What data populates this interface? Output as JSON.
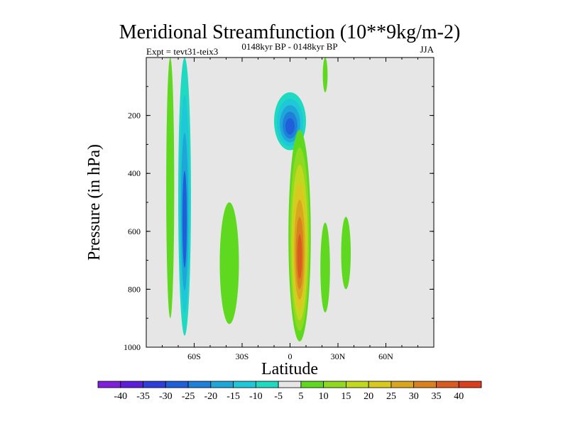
{
  "chart_data": {
    "type": "heatmap",
    "title": "Meridional Streamfunction (10**9kg/m-2)",
    "left_label": "Expt = tevt31-teix3",
    "center_label": "0148kyr BP - 0148kyr BP",
    "right_label": "JJA",
    "xlabel": "Latitude",
    "ylabel": "Pressure (in hPa)",
    "x_range": [
      -90,
      90
    ],
    "y_range": [
      1000,
      0
    ],
    "x_ticks": [
      {
        "value": -60,
        "label": "60S"
      },
      {
        "value": -30,
        "label": "30S"
      },
      {
        "value": 0,
        "label": "0"
      },
      {
        "value": 30,
        "label": "30N"
      },
      {
        "value": 60,
        "label": "60N"
      }
    ],
    "y_ticks": [
      {
        "value": 200,
        "label": "200"
      },
      {
        "value": 400,
        "label": "400"
      },
      {
        "value": 600,
        "label": "600"
      },
      {
        "value": 800,
        "label": "800"
      },
      {
        "value": 1000,
        "label": "1000"
      }
    ],
    "background_color": "#e6e6e6",
    "colorbar": {
      "levels": [
        "-40",
        "-35",
        "-30",
        "-25",
        "-20",
        "-15",
        "-10",
        "-5",
        "5",
        "10",
        "15",
        "20",
        "25",
        "30",
        "35",
        "40"
      ],
      "colors": [
        "#7f1fd9",
        "#5b1fd9",
        "#2f3fd9",
        "#1f5fd9",
        "#1f80d9",
        "#1fa6d9",
        "#1fc8d9",
        "#1fd9c0",
        "#e6e6e6",
        "#5fd91f",
        "#8fd91f",
        "#c0d91f",
        "#d9c81f",
        "#d9a61f",
        "#d9801f",
        "#d95b1f",
        "#d93f1f"
      ]
    },
    "features": [
      {
        "name": "sh-polar-positive-band",
        "lat_center": -75,
        "lat_halfwidth": 2.5,
        "p_top": 0,
        "p_bottom": 900,
        "levels": [
          5
        ]
      },
      {
        "name": "sh-60s-negative-band",
        "lat_center": -66,
        "lat_halfwidth": 4,
        "p_top": 0,
        "p_bottom": 960,
        "levels": [
          -5,
          -10,
          -15,
          -25
        ]
      },
      {
        "name": "sh-30s-positive-patch",
        "lat_center": -38,
        "lat_halfwidth": 6,
        "p_top": 500,
        "p_bottom": 920,
        "levels": [
          5
        ]
      },
      {
        "name": "upper-tropical-negative-cell",
        "lat_center": 0,
        "lat_halfwidth": 10,
        "p_top": 120,
        "p_bottom": 320,
        "levels": [
          -5,
          -10,
          -15,
          -20,
          -25
        ]
      },
      {
        "name": "hadley-positive-cell",
        "lat_center": 6,
        "lat_halfwidth": 7,
        "p_top": 250,
        "p_bottom": 980,
        "levels": [
          5,
          10,
          15,
          20,
          25,
          30,
          35
        ]
      },
      {
        "name": "nh-20n-positive-patch",
        "lat_center": 22,
        "lat_halfwidth": 3,
        "p_top": 570,
        "p_bottom": 880,
        "levels": [
          5
        ]
      },
      {
        "name": "nh-30n-positive-patch",
        "lat_center": 35,
        "lat_halfwidth": 3,
        "p_top": 550,
        "p_bottom": 800,
        "levels": [
          5
        ]
      },
      {
        "name": "nh-upper-positive-sliver",
        "lat_center": 22,
        "lat_halfwidth": 1.5,
        "p_top": 0,
        "p_bottom": 120,
        "levels": [
          5
        ]
      }
    ]
  }
}
